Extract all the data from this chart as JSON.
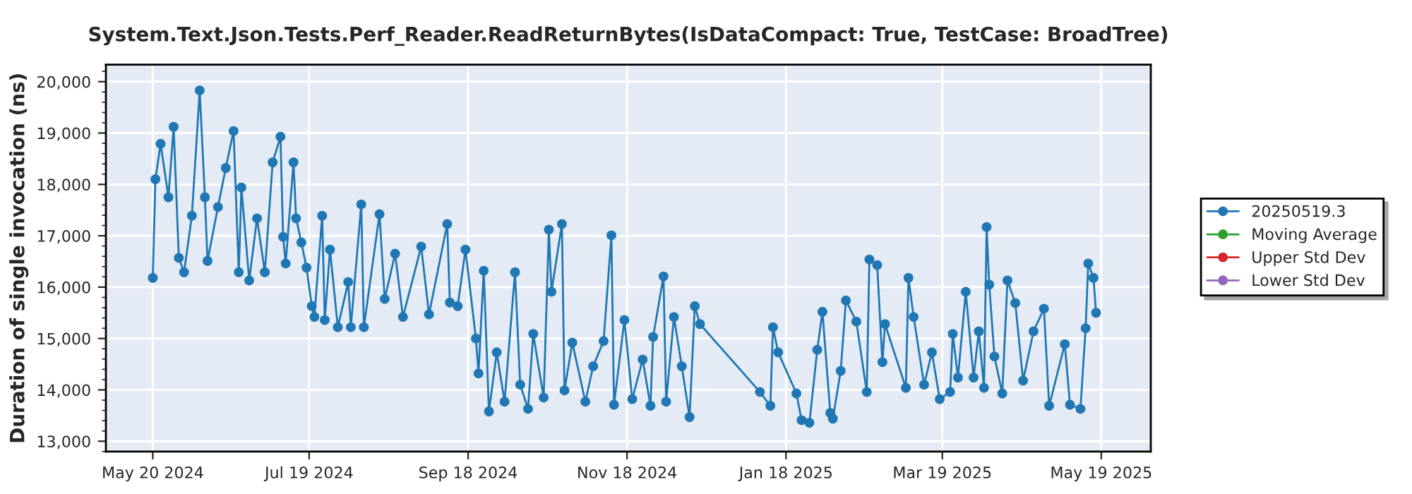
{
  "chart_data": {
    "type": "line",
    "title": "System.Text.Json.Tests.Perf_Reader.ReadReturnBytes(IsDataCompact: True, TestCase: BroadTree)",
    "ylabel": "Duration of single invocation (ns)",
    "xlim": [
      "2024-05-02",
      "2025-06-07"
    ],
    "xticks": [
      {
        "value": "2024-05-20",
        "label": "May 20 2024"
      },
      {
        "value": "2024-07-19",
        "label": "Jul 19 2024"
      },
      {
        "value": "2024-09-18",
        "label": "Sep 18 2024"
      },
      {
        "value": "2024-11-18",
        "label": "Nov 18 2024"
      },
      {
        "value": "2025-01-18",
        "label": "Jan 18 2025"
      },
      {
        "value": "2025-03-19",
        "label": "Mar 19 2025"
      },
      {
        "value": "2025-05-19",
        "label": "May 19 2025"
      }
    ],
    "ylim": [
      12800,
      20330
    ],
    "yticks": [
      {
        "value": 13000,
        "label": "13,000"
      },
      {
        "value": 14000,
        "label": "14,000"
      },
      {
        "value": 15000,
        "label": "15,000"
      },
      {
        "value": 16000,
        "label": "16,000"
      },
      {
        "value": 17000,
        "label": "17,000"
      },
      {
        "value": 18000,
        "label": "18,000"
      },
      {
        "value": 19000,
        "label": "19,000"
      },
      {
        "value": 20000,
        "label": "20,000"
      }
    ],
    "grid": true,
    "legend": "right",
    "marker": "circle",
    "line_style": "solid",
    "series": [
      {
        "name": "20250519.3",
        "color": "#1f77b4",
        "x": [
          "2024-05-20",
          "2024-05-21",
          "2024-05-23",
          "2024-05-26",
          "2024-05-28",
          "2024-05-30",
          "2024-06-01",
          "2024-06-04",
          "2024-06-07",
          "2024-06-09",
          "2024-06-10",
          "2024-06-14",
          "2024-06-17",
          "2024-06-20",
          "2024-06-22",
          "2024-06-23",
          "2024-06-26",
          "2024-06-29",
          "2024-07-02",
          "2024-07-05",
          "2024-07-08",
          "2024-07-09",
          "2024-07-10",
          "2024-07-13",
          "2024-07-14",
          "2024-07-16",
          "2024-07-18",
          "2024-07-20",
          "2024-07-21",
          "2024-07-24",
          "2024-07-25",
          "2024-07-27",
          "2024-07-30",
          "2024-08-03",
          "2024-08-04",
          "2024-08-08",
          "2024-08-09",
          "2024-08-15",
          "2024-08-17",
          "2024-08-21",
          "2024-08-24",
          "2024-08-31",
          "2024-09-03",
          "2024-09-10",
          "2024-09-11",
          "2024-09-14",
          "2024-09-17",
          "2024-09-21",
          "2024-09-22",
          "2024-09-24",
          "2024-09-26",
          "2024-09-29",
          "2024-10-02",
          "2024-10-06",
          "2024-10-08",
          "2024-10-11",
          "2024-10-13",
          "2024-10-17",
          "2024-10-19",
          "2024-10-20",
          "2024-10-24",
          "2024-10-25",
          "2024-10-28",
          "2024-11-02",
          "2024-11-05",
          "2024-11-09",
          "2024-11-12",
          "2024-11-13",
          "2024-11-17",
          "2024-11-20",
          "2024-11-24",
          "2024-11-27",
          "2024-11-28",
          "2024-12-02",
          "2024-12-03",
          "2024-12-06",
          "2024-12-09",
          "2024-12-12",
          "2024-12-14",
          "2024-12-16",
          "2025-01-08",
          "2025-01-12",
          "2025-01-13",
          "2025-01-15",
          "2025-01-22",
          "2025-01-24",
          "2025-01-27",
          "2025-01-30",
          "2025-02-01",
          "2025-02-04",
          "2025-02-05",
          "2025-02-08",
          "2025-02-10",
          "2025-02-14",
          "2025-02-18",
          "2025-02-19",
          "2025-02-22",
          "2025-02-24",
          "2025-02-25",
          "2025-03-05",
          "2025-03-06",
          "2025-03-08",
          "2025-03-12",
          "2025-03-15",
          "2025-03-18",
          "2025-03-22",
          "2025-03-23",
          "2025-03-25",
          "2025-03-28",
          "2025-03-31",
          "2025-04-02",
          "2025-04-04",
          "2025-04-05",
          "2025-04-06",
          "2025-04-08",
          "2025-04-11",
          "2025-04-13",
          "2025-04-16",
          "2025-04-19",
          "2025-04-23",
          "2025-04-27",
          "2025-04-29",
          "2025-05-05",
          "2025-05-07",
          "2025-05-11",
          "2025-05-13",
          "2025-05-14",
          "2025-05-16",
          "2025-05-17"
        ],
        "values": [
          16180,
          18100,
          18790,
          17750,
          19120,
          16570,
          16290,
          17390,
          19830,
          17750,
          16510,
          17560,
          18320,
          19040,
          16290,
          17940,
          16130,
          17340,
          16290,
          18430,
          18930,
          16980,
          16460,
          18430,
          17340,
          16870,
          16380,
          15630,
          15420,
          17390,
          15360,
          16730,
          15220,
          16100,
          15220,
          17610,
          15220,
          17420,
          15770,
          16650,
          15420,
          16790,
          15470,
          17230,
          15700,
          15630,
          16730,
          15000,
          14320,
          16320,
          13580,
          14730,
          13770,
          16290,
          14100,
          13630,
          15090,
          13850,
          17120,
          15910,
          17230,
          13990,
          14920,
          13770,
          14460,
          14950,
          17010,
          13710,
          15360,
          13820,
          14590,
          13690,
          15030,
          16210,
          13770,
          15420,
          14460,
          13470,
          15630,
          15280,
          13960,
          13690,
          15220,
          14730,
          13930,
          13410,
          13360,
          14780,
          15520,
          13550,
          13440,
          14370,
          15740,
          15330,
          13960,
          16540,
          16430,
          14540,
          15280,
          14040,
          16180,
          15420,
          14100,
          14730,
          13820,
          13960,
          15090,
          14240,
          15910,
          14240,
          15140,
          14040,
          17170,
          16050,
          14650,
          13930,
          16130,
          15690,
          14180,
          15140,
          15580,
          13690,
          14890,
          13710,
          13630,
          15200,
          16460,
          16180,
          15500
        ]
      },
      {
        "name": "Moving Average",
        "color": "#2ca02c"
      },
      {
        "name": "Upper Std Dev",
        "color": "#d62728"
      },
      {
        "name": "Lower Std Dev",
        "color": "#9467bd"
      }
    ]
  }
}
